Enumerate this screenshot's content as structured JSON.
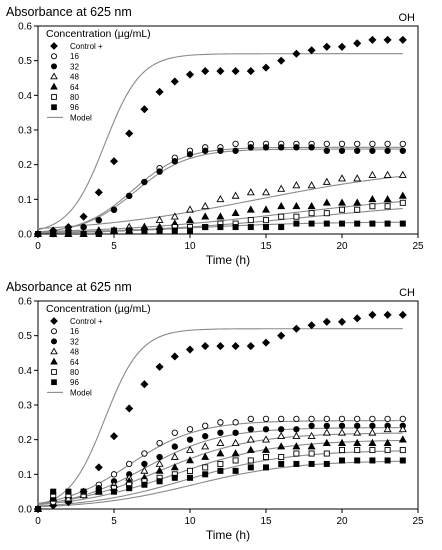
{
  "chart_data": [
    {
      "type": "scatter",
      "panel_label": "OH",
      "ylabel": "Absorbance at 625 nm",
      "xlabel": "Time (h)",
      "xlim": [
        0,
        25
      ],
      "ylim": [
        0,
        0.6
      ],
      "xticks": [
        0,
        5,
        10,
        15,
        20,
        25
      ],
      "yticks": [
        0.0,
        0.1,
        0.2,
        0.3,
        0.4,
        0.5,
        0.6
      ],
      "legend_title": "Concentration (µg/mL)",
      "legend_position": "top-left",
      "grid": false,
      "series": [
        {
          "name": "Control +",
          "marker": "diamond",
          "x": [
            0,
            1,
            2,
            3,
            4,
            5,
            6,
            7,
            8,
            9,
            10,
            11,
            12,
            13,
            14,
            15,
            16,
            17,
            18,
            19,
            20,
            21,
            22,
            23,
            24
          ],
          "y": [
            0.0,
            0.01,
            0.02,
            0.05,
            0.12,
            0.21,
            0.29,
            0.36,
            0.41,
            0.44,
            0.46,
            0.47,
            0.47,
            0.47,
            0.47,
            0.48,
            0.5,
            0.52,
            0.53,
            0.54,
            0.54,
            0.55,
            0.56,
            0.56,
            0.56
          ]
        },
        {
          "name": "16",
          "marker": "circle-open",
          "x": [
            0,
            1,
            2,
            3,
            4,
            5,
            6,
            7,
            8,
            9,
            10,
            11,
            12,
            13,
            14,
            15,
            16,
            17,
            18,
            19,
            20,
            21,
            22,
            23,
            24
          ],
          "y": [
            0.0,
            0.0,
            0.01,
            0.02,
            0.04,
            0.07,
            0.11,
            0.15,
            0.19,
            0.22,
            0.24,
            0.25,
            0.25,
            0.26,
            0.26,
            0.26,
            0.26,
            0.26,
            0.26,
            0.26,
            0.26,
            0.26,
            0.26,
            0.26,
            0.26
          ]
        },
        {
          "name": "32",
          "marker": "circle-filled",
          "x": [
            0,
            1,
            2,
            3,
            4,
            5,
            6,
            7,
            8,
            9,
            10,
            11,
            12,
            13,
            14,
            15,
            16,
            17,
            18,
            19,
            20,
            21,
            22,
            23,
            24
          ],
          "y": [
            0.0,
            0.0,
            0.01,
            0.02,
            0.04,
            0.07,
            0.11,
            0.15,
            0.18,
            0.21,
            0.23,
            0.24,
            0.24,
            0.24,
            0.25,
            0.25,
            0.25,
            0.25,
            0.25,
            0.24,
            0.24,
            0.24,
            0.24,
            0.24,
            0.24
          ]
        },
        {
          "name": "48",
          "marker": "triangle-open",
          "x": [
            0,
            1,
            2,
            3,
            4,
            5,
            6,
            7,
            8,
            9,
            10,
            11,
            12,
            13,
            14,
            15,
            16,
            17,
            18,
            19,
            20,
            21,
            22,
            23,
            24
          ],
          "y": [
            0.0,
            0.0,
            0.0,
            0.0,
            0.01,
            0.01,
            0.02,
            0.02,
            0.04,
            0.05,
            0.07,
            0.08,
            0.1,
            0.11,
            0.12,
            0.12,
            0.13,
            0.14,
            0.14,
            0.15,
            0.16,
            0.16,
            0.17,
            0.17,
            0.17
          ]
        },
        {
          "name": "64",
          "marker": "triangle-filled",
          "x": [
            0,
            1,
            2,
            3,
            4,
            5,
            6,
            7,
            8,
            9,
            10,
            11,
            12,
            13,
            14,
            15,
            16,
            17,
            18,
            19,
            20,
            21,
            22,
            23,
            24
          ],
          "y": [
            0.0,
            0.0,
            0.0,
            0.0,
            0.01,
            0.01,
            0.01,
            0.02,
            0.02,
            0.03,
            0.04,
            0.05,
            0.05,
            0.06,
            0.07,
            0.07,
            0.08,
            0.08,
            0.08,
            0.09,
            0.09,
            0.09,
            0.1,
            0.1,
            0.11
          ]
        },
        {
          "name": "80",
          "marker": "square-open",
          "x": [
            0,
            1,
            2,
            3,
            4,
            5,
            6,
            7,
            8,
            9,
            10,
            11,
            12,
            13,
            14,
            15,
            16,
            17,
            18,
            19,
            20,
            21,
            22,
            23,
            24
          ],
          "y": [
            0.0,
            0.0,
            0.0,
            0.0,
            0.0,
            0.01,
            0.01,
            0.01,
            0.01,
            0.02,
            0.02,
            0.02,
            0.03,
            0.03,
            0.04,
            0.04,
            0.05,
            0.05,
            0.06,
            0.06,
            0.07,
            0.07,
            0.08,
            0.08,
            0.09
          ]
        },
        {
          "name": "96",
          "marker": "square-filled",
          "x": [
            0,
            1,
            2,
            3,
            4,
            5,
            6,
            7,
            8,
            9,
            10,
            11,
            12,
            13,
            14,
            15,
            16,
            17,
            18,
            19,
            20,
            21,
            22,
            23,
            24
          ],
          "y": [
            0.0,
            0.0,
            0.0,
            0.0,
            0.0,
            0.01,
            0.01,
            0.01,
            0.01,
            0.01,
            0.01,
            0.02,
            0.02,
            0.02,
            0.02,
            0.02,
            0.02,
            0.03,
            0.03,
            0.03,
            0.03,
            0.03,
            0.03,
            0.03,
            0.03
          ]
        }
      ],
      "model_label": "Model",
      "model_curves": [
        {
          "A": 0.52,
          "k": 0.85,
          "t0": 4.4
        },
        {
          "A": 0.25,
          "k": 0.6,
          "t0": 6.2
        },
        {
          "A": 0.245,
          "k": 0.58,
          "t0": 6.4
        },
        {
          "A": 0.2,
          "k": 0.17,
          "t0": 14.5
        },
        {
          "A": 0.12,
          "k": 0.17,
          "t0": 16.5
        },
        {
          "A": 0.1,
          "k": 0.17,
          "t0": 18.0
        },
        {
          "A": 0.035,
          "k": 0.25,
          "t0": 10.0
        }
      ]
    },
    {
      "type": "scatter",
      "panel_label": "CH",
      "ylabel": "Absorbance at 625 nm",
      "xlabel": "Time (h)",
      "xlim": [
        0,
        25
      ],
      "ylim": [
        0,
        0.6
      ],
      "xticks": [
        0,
        5,
        10,
        15,
        20,
        25
      ],
      "yticks": [
        0.0,
        0.1,
        0.2,
        0.3,
        0.4,
        0.5,
        0.6
      ],
      "legend_title": "Concentration (µg/mL)",
      "legend_position": "top-left",
      "grid": false,
      "series": [
        {
          "name": "Control +",
          "marker": "diamond",
          "x": [
            0,
            1,
            2,
            3,
            4,
            5,
            6,
            7,
            8,
            9,
            10,
            11,
            12,
            13,
            14,
            15,
            16,
            17,
            18,
            19,
            20,
            21,
            22,
            23,
            24
          ],
          "y": [
            0.0,
            0.01,
            0.02,
            0.05,
            0.12,
            0.21,
            0.29,
            0.36,
            0.41,
            0.44,
            0.46,
            0.47,
            0.47,
            0.47,
            0.47,
            0.48,
            0.5,
            0.52,
            0.53,
            0.54,
            0.54,
            0.55,
            0.56,
            0.56,
            0.56
          ]
        },
        {
          "name": "16",
          "marker": "circle-open",
          "x": [
            0,
            1,
            2,
            3,
            4,
            5,
            6,
            7,
            8,
            9,
            10,
            11,
            12,
            13,
            14,
            15,
            16,
            17,
            18,
            19,
            20,
            21,
            22,
            23,
            24
          ],
          "y": [
            0.0,
            0.02,
            0.03,
            0.04,
            0.07,
            0.1,
            0.13,
            0.16,
            0.19,
            0.22,
            0.23,
            0.24,
            0.25,
            0.25,
            0.26,
            0.26,
            0.26,
            0.26,
            0.26,
            0.26,
            0.26,
            0.26,
            0.26,
            0.26,
            0.26
          ]
        },
        {
          "name": "32",
          "marker": "circle-filled",
          "x": [
            0,
            1,
            2,
            3,
            4,
            5,
            6,
            7,
            8,
            9,
            10,
            11,
            12,
            13,
            14,
            15,
            16,
            17,
            18,
            19,
            20,
            21,
            22,
            23,
            24
          ],
          "y": [
            0.0,
            0.03,
            0.03,
            0.04,
            0.06,
            0.08,
            0.1,
            0.13,
            0.15,
            0.18,
            0.2,
            0.21,
            0.22,
            0.22,
            0.23,
            0.23,
            0.23,
            0.23,
            0.24,
            0.24,
            0.24,
            0.24,
            0.24,
            0.24,
            0.24
          ]
        },
        {
          "name": "48",
          "marker": "triangle-open",
          "x": [
            0,
            1,
            2,
            3,
            4,
            5,
            6,
            7,
            8,
            9,
            10,
            11,
            12,
            13,
            14,
            15,
            16,
            17,
            18,
            19,
            20,
            21,
            22,
            23,
            24
          ],
          "y": [
            0.0,
            0.03,
            0.03,
            0.04,
            0.05,
            0.07,
            0.09,
            0.11,
            0.13,
            0.15,
            0.17,
            0.18,
            0.19,
            0.19,
            0.2,
            0.2,
            0.21,
            0.21,
            0.21,
            0.22,
            0.22,
            0.22,
            0.22,
            0.23,
            0.23
          ]
        },
        {
          "name": "64",
          "marker": "triangle-filled",
          "x": [
            0,
            1,
            2,
            3,
            4,
            5,
            6,
            7,
            8,
            9,
            10,
            11,
            12,
            13,
            14,
            15,
            16,
            17,
            18,
            19,
            20,
            21,
            22,
            23,
            24
          ],
          "y": [
            0.0,
            0.03,
            0.04,
            0.04,
            0.05,
            0.06,
            0.08,
            0.09,
            0.11,
            0.12,
            0.14,
            0.15,
            0.16,
            0.16,
            0.17,
            0.17,
            0.18,
            0.18,
            0.18,
            0.19,
            0.19,
            0.19,
            0.19,
            0.19,
            0.2
          ]
        },
        {
          "name": "80",
          "marker": "square-open",
          "x": [
            0,
            1,
            2,
            3,
            4,
            5,
            6,
            7,
            8,
            9,
            10,
            11,
            12,
            13,
            14,
            15,
            16,
            17,
            18,
            19,
            20,
            21,
            22,
            23,
            24
          ],
          "y": [
            0.0,
            0.04,
            0.04,
            0.04,
            0.05,
            0.06,
            0.07,
            0.08,
            0.09,
            0.1,
            0.11,
            0.12,
            0.13,
            0.14,
            0.14,
            0.15,
            0.15,
            0.16,
            0.16,
            0.16,
            0.17,
            0.17,
            0.17,
            0.17,
            0.17
          ]
        },
        {
          "name": "96",
          "marker": "square-filled",
          "x": [
            0,
            1,
            2,
            3,
            4,
            5,
            6,
            7,
            8,
            9,
            10,
            11,
            12,
            13,
            14,
            15,
            16,
            17,
            18,
            19,
            20,
            21,
            22,
            23,
            24
          ],
          "y": [
            0.0,
            0.05,
            0.05,
            0.05,
            0.05,
            0.05,
            0.06,
            0.07,
            0.08,
            0.09,
            0.09,
            0.1,
            0.11,
            0.11,
            0.12,
            0.12,
            0.13,
            0.13,
            0.13,
            0.13,
            0.14,
            0.14,
            0.14,
            0.14,
            0.14
          ]
        }
      ],
      "model_label": "Model",
      "model_curves": [
        {
          "A": 0.52,
          "k": 0.85,
          "t0": 4.4
        },
        {
          "A": 0.255,
          "k": 0.45,
          "t0": 6.0
        },
        {
          "A": 0.235,
          "k": 0.4,
          "t0": 7.0
        },
        {
          "A": 0.22,
          "k": 0.33,
          "t0": 8.0
        },
        {
          "A": 0.2,
          "k": 0.3,
          "t0": 9.0
        },
        {
          "A": 0.17,
          "k": 0.3,
          "t0": 9.8
        },
        {
          "A": 0.14,
          "k": 0.3,
          "t0": 10.2
        }
      ]
    }
  ]
}
